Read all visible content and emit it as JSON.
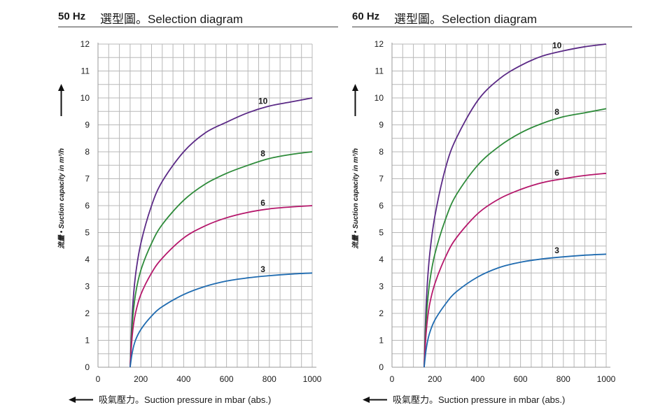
{
  "panels": [
    {
      "hz_label": "50 Hz",
      "selection_title": "選型圖。Selection diagram",
      "x_axis_label": "吸氣壓力。Suction pressure in mbar (abs.)",
      "y_axis_label": "流量 • Suction capacity in m³/h"
    },
    {
      "hz_label": "60 Hz",
      "selection_title": "選型圖。Selection diagram",
      "x_axis_label": "吸氣壓力。Suction pressure in mbar (abs.)",
      "y_axis_label": "流量 • Suction capacity in m³/h"
    }
  ],
  "chart_data": [
    {
      "type": "line",
      "title": "50 Hz 選型圖。Selection diagram",
      "xlabel": "吸氣壓力。Suction pressure in mbar (abs.)",
      "ylabel": "流量 • Suction capacity in m³/h",
      "xlim": [
        0,
        1000
      ],
      "ylim": [
        0,
        12
      ],
      "x_ticks": [
        0,
        200,
        400,
        600,
        800,
        1000
      ],
      "y_ticks": [
        0,
        1,
        2,
        3,
        4,
        5,
        6,
        7,
        8,
        9,
        10,
        11,
        12
      ],
      "grid": true,
      "colors": {
        "10": "#5b2a86",
        "8": "#2e8b3a",
        "6": "#b5176b",
        "3": "#1f6bb0"
      },
      "series": [
        {
          "name": "10",
          "x": [
            150,
            160,
            175,
            200,
            250,
            300,
            400,
            500,
            600,
            700,
            800,
            900,
            1000
          ],
          "y": [
            0,
            2.0,
            3.4,
            4.6,
            6.0,
            6.9,
            8.0,
            8.7,
            9.1,
            9.45,
            9.7,
            9.85,
            10.0
          ]
        },
        {
          "name": "8",
          "x": [
            150,
            160,
            175,
            200,
            250,
            300,
            400,
            500,
            600,
            700,
            800,
            900,
            1000
          ],
          "y": [
            0,
            1.6,
            2.7,
            3.6,
            4.6,
            5.3,
            6.2,
            6.8,
            7.2,
            7.5,
            7.75,
            7.9,
            8.0
          ]
        },
        {
          "name": "6",
          "x": [
            150,
            160,
            175,
            200,
            250,
            300,
            400,
            500,
            600,
            700,
            800,
            900,
            1000
          ],
          "y": [
            0,
            1.2,
            2.0,
            2.7,
            3.5,
            4.05,
            4.8,
            5.25,
            5.55,
            5.75,
            5.88,
            5.95,
            6.0
          ]
        },
        {
          "name": "3",
          "x": [
            150,
            160,
            175,
            200,
            250,
            300,
            400,
            500,
            600,
            700,
            800,
            900,
            1000
          ],
          "y": [
            0,
            0.55,
            1.0,
            1.4,
            1.9,
            2.25,
            2.7,
            3.0,
            3.2,
            3.32,
            3.4,
            3.46,
            3.5
          ]
        }
      ]
    },
    {
      "type": "line",
      "title": "60 Hz 選型圖。Selection diagram",
      "xlabel": "吸氣壓力。Suction pressure in mbar (abs.)",
      "ylabel": "流量 • Suction capacity in m³/h",
      "xlim": [
        0,
        1000
      ],
      "ylim": [
        0,
        12
      ],
      "x_ticks": [
        0,
        200,
        400,
        600,
        800,
        1000
      ],
      "y_ticks": [
        0,
        1,
        2,
        3,
        4,
        5,
        6,
        7,
        8,
        9,
        10,
        11,
        12
      ],
      "grid": true,
      "colors": {
        "10": "#5b2a86",
        "8": "#2e8b3a",
        "6": "#b5176b",
        "3": "#1f6bb0"
      },
      "series": [
        {
          "name": "10",
          "x": [
            150,
            160,
            175,
            200,
            250,
            300,
            400,
            500,
            600,
            700,
            800,
            900,
            1000
          ],
          "y": [
            0,
            2.4,
            4.1,
            5.6,
            7.4,
            8.5,
            9.9,
            10.7,
            11.2,
            11.55,
            11.75,
            11.9,
            12.0
          ]
        },
        {
          "name": "8",
          "x": [
            150,
            160,
            175,
            200,
            250,
            300,
            400,
            500,
            600,
            700,
            800,
            900,
            1000
          ],
          "y": [
            0,
            1.8,
            3.1,
            4.2,
            5.5,
            6.4,
            7.5,
            8.2,
            8.7,
            9.05,
            9.3,
            9.45,
            9.6
          ]
        },
        {
          "name": "6",
          "x": [
            150,
            160,
            175,
            200,
            250,
            300,
            400,
            500,
            600,
            700,
            800,
            900,
            1000
          ],
          "y": [
            0,
            1.35,
            2.3,
            3.1,
            4.1,
            4.8,
            5.7,
            6.25,
            6.6,
            6.85,
            7.0,
            7.12,
            7.2
          ]
        },
        {
          "name": "3",
          "x": [
            150,
            160,
            175,
            200,
            250,
            300,
            400,
            500,
            600,
            700,
            800,
            900,
            1000
          ],
          "y": [
            0,
            0.7,
            1.25,
            1.75,
            2.35,
            2.8,
            3.35,
            3.7,
            3.9,
            4.02,
            4.1,
            4.16,
            4.2
          ]
        }
      ]
    }
  ]
}
